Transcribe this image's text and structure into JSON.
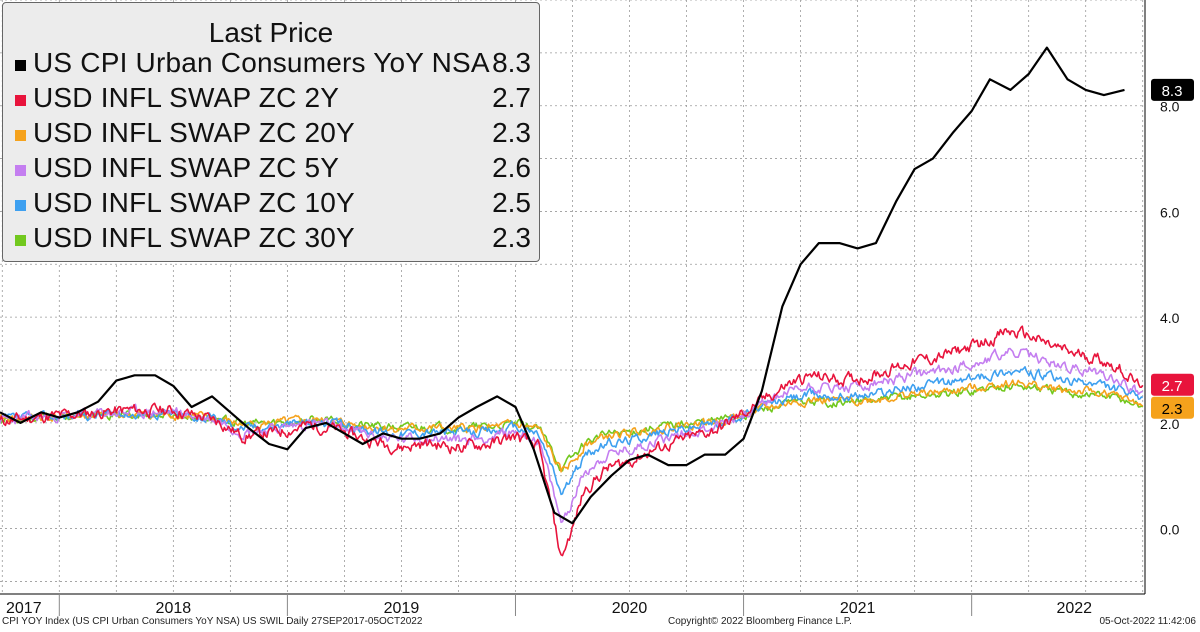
{
  "legend": {
    "title": "Last Price",
    "rows": [
      {
        "label": "US CPI Urban Consumers YoY NSA",
        "value": "8.3",
        "color": "#000000"
      },
      {
        "label": "USD INFL SWAP ZC 2Y",
        "value": "2.7",
        "color": "#e8143c"
      },
      {
        "label": "USD INFL SWAP ZC 20Y",
        "value": "2.3",
        "color": "#f5a21c"
      },
      {
        "label": "USD INFL SWAP ZC 5Y",
        "value": "2.6",
        "color": "#c47ef0"
      },
      {
        "label": "USD INFL SWAP ZC 10Y",
        "value": "2.5",
        "color": "#3ea0f0"
      },
      {
        "label": "USD INFL SWAP ZC 30Y",
        "value": "2.3",
        "color": "#72c81e"
      }
    ]
  },
  "footer": {
    "left": "CPI YOY Index (US CPI Urban Consumers YoY NSA) US SWIL  Daily 27SEP2017-05OCT2022",
    "center": "Copyright© 2022 Bloomberg Finance L.P.",
    "right": "05-Oct-2022 11:42:06"
  },
  "chart_data": {
    "type": "line",
    "title": "Last Price",
    "x_range": [
      2017.74,
      2022.76
    ],
    "ylim": [
      -1.2,
      10.0
    ],
    "y_ticks": [
      0.0,
      2.0,
      4.0,
      6.0,
      8.0
    ],
    "y_tick_labels": [
      "0.0",
      "2.0",
      "4.0",
      "6.0",
      "8.0"
    ],
    "x_year_labels": [
      "2017",
      "2018",
      "2019",
      "2020",
      "2021",
      "2022"
    ],
    "x_year_label_positions": [
      2017.8,
      2018.5,
      2019.5,
      2020.5,
      2021.5,
      2022.45
    ],
    "last_value_labels": [
      {
        "text": "8.3",
        "value": 8.3,
        "bg": "#000000",
        "fg": "#ffffff"
      },
      {
        "text": "2.7",
        "value": 2.72,
        "bg": "#e8143c",
        "fg": "#ffffff"
      },
      {
        "text": "2.3",
        "value": 2.32,
        "bg": "#f5a21c",
        "fg": "#000000"
      }
    ],
    "series": [
      {
        "name": "US CPI Urban Consumers YoY NSA",
        "color": "#000000",
        "width": 2.2,
        "x": [
          2017.74,
          2017.83,
          2017.92,
          2018.0,
          2018.08,
          2018.17,
          2018.25,
          2018.33,
          2018.42,
          2018.5,
          2018.58,
          2018.67,
          2018.75,
          2018.83,
          2018.92,
          2019.0,
          2019.08,
          2019.17,
          2019.25,
          2019.33,
          2019.42,
          2019.5,
          2019.58,
          2019.67,
          2019.75,
          2019.83,
          2019.92,
          2020.0,
          2020.08,
          2020.17,
          2020.25,
          2020.33,
          2020.42,
          2020.5,
          2020.58,
          2020.67,
          2020.75,
          2020.83,
          2020.92,
          2021.0,
          2021.08,
          2021.17,
          2021.25,
          2021.33,
          2021.42,
          2021.5,
          2021.58,
          2021.67,
          2021.75,
          2021.83,
          2021.92,
          2022.0,
          2022.08,
          2022.17,
          2022.25,
          2022.33,
          2022.42,
          2022.5,
          2022.58,
          2022.67
        ],
        "y": [
          2.2,
          2.0,
          2.2,
          2.1,
          2.2,
          2.4,
          2.8,
          2.9,
          2.9,
          2.7,
          2.3,
          2.5,
          2.2,
          1.9,
          1.6,
          1.5,
          1.9,
          2.0,
          1.8,
          1.6,
          1.8,
          1.7,
          1.7,
          1.8,
          2.1,
          2.3,
          2.5,
          2.3,
          1.5,
          0.3,
          0.1,
          0.6,
          1.0,
          1.3,
          1.4,
          1.2,
          1.2,
          1.4,
          1.4,
          1.7,
          2.6,
          4.2,
          5.0,
          5.4,
          5.4,
          5.3,
          5.4,
          6.2,
          6.8,
          7.0,
          7.5,
          7.9,
          8.5,
          8.3,
          8.6,
          9.1,
          8.5,
          8.3,
          8.2,
          8.3
        ]
      },
      {
        "name": "USD INFL SWAP ZC 2Y",
        "color": "#e8143c",
        "width": 1.6,
        "base": "crv",
        "mult": 1.4,
        "off": 0.05,
        "seed": 11,
        "last": 2.72
      },
      {
        "name": "USD INFL SWAP ZC 5Y",
        "color": "#c47ef0",
        "width": 1.6,
        "base": "crv",
        "mult": 1.05,
        "off": 0.08,
        "seed": 23,
        "last": 2.6
      },
      {
        "name": "USD INFL SWAP ZC 10Y",
        "color": "#3ea0f0",
        "width": 1.6,
        "base": "crv",
        "mult": 0.75,
        "off": 0.1,
        "seed": 37,
        "last": 2.5
      },
      {
        "name": "USD INFL SWAP ZC 20Y",
        "color": "#f5a21c",
        "width": 1.6,
        "base": "crv",
        "mult": 0.55,
        "off": 0.1,
        "seed": 41,
        "last": 2.32
      },
      {
        "name": "USD INFL SWAP ZC 30Y",
        "color": "#72c81e",
        "width": 1.6,
        "base": "crv",
        "mult": 0.5,
        "off": 0.12,
        "seed": 53,
        "last": 2.3
      }
    ],
    "swap_base_curve": {
      "x": [
        2017.74,
        2017.9,
        2018.1,
        2018.3,
        2018.5,
        2018.7,
        2018.8,
        2018.95,
        2019.1,
        2019.2,
        2019.35,
        2019.5,
        2019.6,
        2019.75,
        2019.9,
        2020.0,
        2020.1,
        2020.15,
        2020.2,
        2020.25,
        2020.3,
        2020.4,
        2020.5,
        2020.6,
        2020.75,
        2020.9,
        2021.0,
        2021.1,
        2021.2,
        2021.3,
        2021.45,
        2021.55,
        2021.65,
        2021.75,
        2021.85,
        2021.95,
        2022.05,
        2022.15,
        2022.25,
        2022.35,
        2022.45,
        2022.55,
        2022.65,
        2022.76
      ],
      "y": [
        2.05,
        2.1,
        2.15,
        2.2,
        2.2,
        2.05,
        1.85,
        1.9,
        2.0,
        1.95,
        1.8,
        1.7,
        1.75,
        1.7,
        1.75,
        1.85,
        1.7,
        1.0,
        0.2,
        0.6,
        1.1,
        1.4,
        1.5,
        1.65,
        1.8,
        1.95,
        2.15,
        2.35,
        2.55,
        2.65,
        2.6,
        2.65,
        2.75,
        2.85,
        2.9,
        3.0,
        3.1,
        3.25,
        3.2,
        3.05,
        2.95,
        2.9,
        2.75,
        2.45
      ]
    }
  }
}
